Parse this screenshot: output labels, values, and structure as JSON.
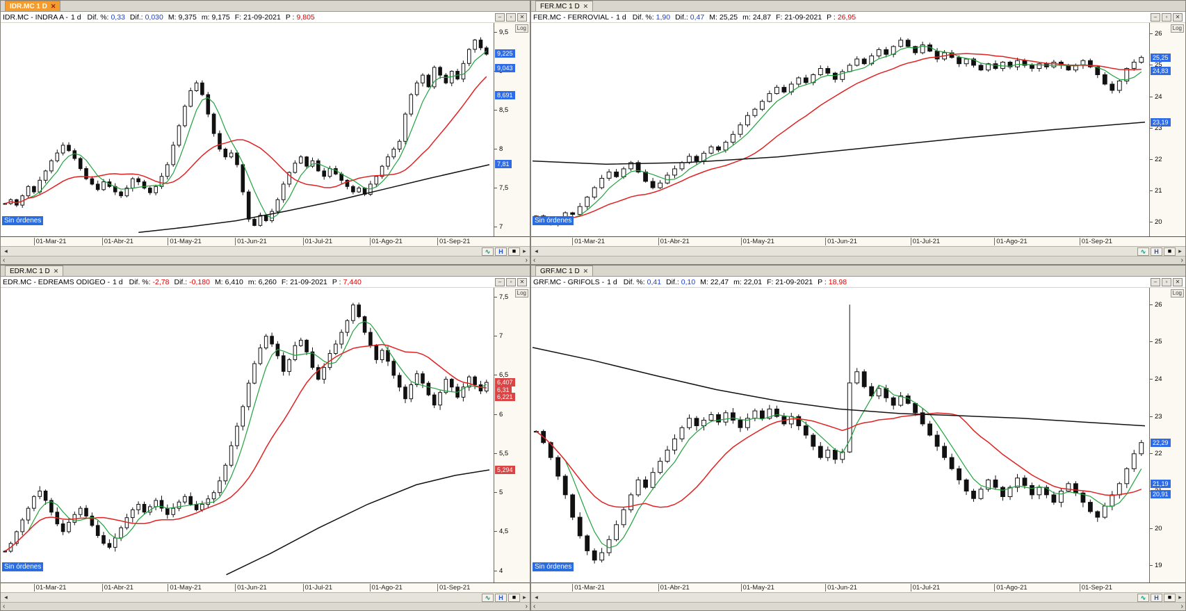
{
  "icons": {
    "tab_close": "✕",
    "minimize": "–",
    "maximize": "▫",
    "close": "✕",
    "log": "Log",
    "left_arrow": "◂",
    "right_arrow": "▸",
    "wave": "∿",
    "disk_h": "H",
    "square": "■",
    "prev": "‹",
    "next": "›"
  },
  "colors": {
    "badge_blue": "#2e6be6",
    "badge_red": "#d94444",
    "ma_green": "#1fa33c",
    "ma_red": "#e02222",
    "ma_black": "#111111",
    "value_blue": "#1a3fd1",
    "value_red": "#e00000"
  },
  "panes": [
    {
      "id": "IDR.MC",
      "tab": {
        "label": "IDR.MC 1 D",
        "active": true
      },
      "header": {
        "title": "IDR.MC - INDRA A -",
        "timeframe": "1 d",
        "fields": [
          {
            "k": "Dif. %:",
            "v": "0,33",
            "c": "#1a3fd1"
          },
          {
            "k": "Dif.:",
            "v": "0,030",
            "c": "#1a3fd1"
          },
          {
            "k": "M:",
            "v": "9,375",
            "c": "#000000"
          },
          {
            "k": "m:",
            "v": "9,175",
            "c": "#000000"
          },
          {
            "k": "F:",
            "v": "21-09-2021",
            "c": "#000000"
          },
          {
            "k": "P :",
            "v": "9,805",
            "c": "#e00000"
          }
        ]
      },
      "no_orders_label": "Sin órdenes",
      "axis": {
        "range": [
          6.88,
          9.62
        ],
        "ticks": [
          {
            "v": 9.5,
            "label": "9,5"
          },
          {
            "v": 9,
            "label": "9"
          },
          {
            "v": 8.5,
            "label": "8,5"
          },
          {
            "v": 8,
            "label": "8"
          },
          {
            "v": 7.5,
            "label": "7,5"
          },
          {
            "v": 7,
            "label": "7"
          }
        ],
        "badges": [
          {
            "price": 9.225,
            "label": "9,225",
            "color": "#2e6be6"
          },
          {
            "price": 9.043,
            "label": "9,043",
            "color": "#2e6be6"
          },
          {
            "price": 8.691,
            "label": "8,691",
            "color": "#2e6be6"
          },
          {
            "price": 7.81,
            "label": "7,81",
            "color": "#2e6be6"
          }
        ]
      },
      "x_labels": [
        {
          "f": 0.065,
          "label": "01-Mar-21"
        },
        {
          "f": 0.205,
          "label": "01-Abr-21"
        },
        {
          "f": 0.34,
          "label": "01-May-21"
        },
        {
          "f": 0.478,
          "label": "01-Jun-21"
        },
        {
          "f": 0.617,
          "label": "01-Jul-21"
        },
        {
          "f": 0.754,
          "label": "01-Ago-21"
        },
        {
          "f": 0.893,
          "label": "01-Sep-21"
        }
      ],
      "chart_data": {
        "type": "candlestick",
        "symbol": "IDR.MC",
        "period": "1d",
        "closes": [
          7.3,
          7.35,
          7.28,
          7.4,
          7.52,
          7.45,
          7.6,
          7.72,
          7.85,
          7.95,
          8.05,
          7.98,
          7.88,
          7.75,
          7.62,
          7.55,
          7.48,
          7.58,
          7.52,
          7.45,
          7.4,
          7.5,
          7.62,
          7.58,
          7.5,
          7.44,
          7.52,
          7.65,
          7.8,
          8.05,
          8.3,
          8.55,
          8.75,
          8.85,
          8.7,
          8.45,
          8.2,
          8.0,
          7.9,
          7.95,
          7.8,
          7.45,
          7.1,
          7.02,
          7.15,
          7.08,
          7.2,
          7.35,
          7.55,
          7.7,
          7.82,
          7.9,
          7.78,
          7.85,
          7.72,
          7.65,
          7.75,
          7.68,
          7.6,
          7.52,
          7.45,
          7.5,
          7.42,
          7.55,
          7.65,
          7.78,
          7.9,
          8.0,
          8.1,
          8.45,
          8.7,
          8.85,
          8.95,
          8.8,
          9.05,
          8.95,
          8.85,
          9.0,
          8.9,
          9.1,
          9.28,
          9.4,
          9.3,
          9.22
        ],
        "ma_black": [
          [
            0.28,
            6.93
          ],
          [
            0.38,
            7.0
          ],
          [
            0.48,
            7.08
          ],
          [
            0.58,
            7.2
          ],
          [
            0.68,
            7.33
          ],
          [
            0.78,
            7.48
          ],
          [
            0.88,
            7.63
          ],
          [
            1,
            7.8
          ]
        ],
        "ma_windows": {
          "green": 5,
          "red": 16
        },
        "spikes": []
      }
    },
    {
      "id": "FER.MC",
      "tab": {
        "label": "FER.MC 1 D",
        "active": false
      },
      "header": {
        "title": "FER.MC - FERROVIAL -",
        "timeframe": "1 d",
        "fields": [
          {
            "k": "Dif. %:",
            "v": "1,90",
            "c": "#1a3fd1"
          },
          {
            "k": "Dif.:",
            "v": "0,47",
            "c": "#1a3fd1"
          },
          {
            "k": "M:",
            "v": "25,25",
            "c": "#000000"
          },
          {
            "k": "m:",
            "v": "24,87",
            "c": "#000000"
          },
          {
            "k": "F:",
            "v": "21-09-2021",
            "c": "#000000"
          },
          {
            "k": "P :",
            "v": "26,95",
            "c": "#e00000"
          }
        ]
      },
      "no_orders_label": "Sin órdenes",
      "axis": {
        "range": [
          19.55,
          26.35
        ],
        "ticks": [
          {
            "v": 26,
            "label": "26"
          },
          {
            "v": 25,
            "label": "25"
          },
          {
            "v": 24,
            "label": "24"
          },
          {
            "v": 23,
            "label": "23"
          },
          {
            "v": 22,
            "label": "22"
          },
          {
            "v": 21,
            "label": "21"
          },
          {
            "v": 20,
            "label": "20"
          }
        ],
        "badges": [
          {
            "price": 25.25,
            "label": "25,25",
            "color": "#2e6be6"
          },
          {
            "price": 24.83,
            "label": "24,83",
            "color": "#2e6be6"
          },
          {
            "price": 23.19,
            "label": "23,19",
            "color": "#2e6be6"
          }
        ]
      },
      "x_labels": [
        {
          "f": 0.065,
          "label": "01-Mar-21"
        },
        {
          "f": 0.205,
          "label": "01-Abr-21"
        },
        {
          "f": 0.34,
          "label": "01-May-21"
        },
        {
          "f": 0.478,
          "label": "01-Jun-21"
        },
        {
          "f": 0.617,
          "label": "01-Jul-21"
        },
        {
          "f": 0.754,
          "label": "01-Ago-21"
        },
        {
          "f": 0.893,
          "label": "01-Sep-21"
        }
      ],
      "chart_data": {
        "type": "candlestick",
        "symbol": "FER.MC",
        "period": "1d",
        "closes": [
          20.2,
          20.05,
          19.95,
          20.1,
          20.3,
          20.25,
          20.5,
          20.8,
          21.1,
          21.4,
          21.6,
          21.45,
          21.7,
          21.9,
          21.6,
          21.3,
          21.1,
          21.25,
          21.5,
          21.7,
          21.9,
          22.1,
          21.95,
          22.2,
          22.4,
          22.3,
          22.55,
          22.8,
          23.1,
          23.4,
          23.6,
          23.85,
          24.1,
          24.3,
          24.15,
          24.4,
          24.6,
          24.45,
          24.7,
          24.9,
          24.75,
          24.55,
          24.8,
          25.0,
          25.2,
          25.05,
          25.3,
          25.5,
          25.35,
          25.6,
          25.8,
          25.6,
          25.4,
          25.65,
          25.45,
          25.2,
          25.4,
          25.25,
          25.05,
          25.2,
          25.0,
          24.85,
          25.05,
          24.9,
          25.1,
          24.95,
          25.15,
          25.0,
          24.9,
          25.05,
          24.95,
          25.1,
          25.0,
          24.85,
          25.0,
          25.15,
          24.95,
          24.7,
          24.4,
          24.2,
          24.5,
          24.9,
          25.1,
          25.25
        ],
        "ma_black": [
          [
            0,
            21.95
          ],
          [
            0.12,
            21.85
          ],
          [
            0.25,
            21.9
          ],
          [
            0.4,
            22.08
          ],
          [
            0.55,
            22.38
          ],
          [
            0.7,
            22.68
          ],
          [
            0.85,
            22.95
          ],
          [
            1,
            23.19
          ]
        ],
        "ma_windows": {
          "green": 5,
          "red": 16
        },
        "spikes": []
      }
    },
    {
      "id": "EDR.MC",
      "tab": {
        "label": "EDR.MC 1 D",
        "active": false
      },
      "header": {
        "title": "EDR.MC - EDREAMS ODIGEO -",
        "timeframe": "1 d",
        "fields": [
          {
            "k": "Dif. %:",
            "v": "-2,78",
            "c": "#e00000"
          },
          {
            "k": "Dif.:",
            "v": "-0,180",
            "c": "#e00000"
          },
          {
            "k": "M:",
            "v": "6,410",
            "c": "#000000"
          },
          {
            "k": "m:",
            "v": "6,260",
            "c": "#000000"
          },
          {
            "k": "F:",
            "v": "21-09-2021",
            "c": "#000000"
          },
          {
            "k": "P :",
            "v": "7,440",
            "c": "#e00000"
          }
        ]
      },
      "no_orders_label": "Sin órdenes",
      "axis": {
        "range": [
          3.85,
          7.62
        ],
        "ticks": [
          {
            "v": 7.5,
            "label": "7,5"
          },
          {
            "v": 7,
            "label": "7"
          },
          {
            "v": 6.5,
            "label": "6,5"
          },
          {
            "v": 6,
            "label": "6"
          },
          {
            "v": 5.5,
            "label": "5,5"
          },
          {
            "v": 5,
            "label": "5"
          },
          {
            "v": 4.5,
            "label": "4,5"
          },
          {
            "v": 4,
            "label": "4"
          }
        ],
        "badges": [
          {
            "price": 6.407,
            "label": "6,407",
            "color": "#d94444"
          },
          {
            "price": 6.31,
            "label": "6,31",
            "color": "#d94444"
          },
          {
            "price": 6.221,
            "label": "6,221",
            "color": "#d94444"
          },
          {
            "price": 5.294,
            "label": "5,294",
            "color": "#d94444"
          }
        ]
      },
      "x_labels": [
        {
          "f": 0.065,
          "label": "01-Mar-21"
        },
        {
          "f": 0.205,
          "label": "01-Abr-21"
        },
        {
          "f": 0.34,
          "label": "01-May-21"
        },
        {
          "f": 0.478,
          "label": "01-Jun-21"
        },
        {
          "f": 0.617,
          "label": "01-Jul-21"
        },
        {
          "f": 0.754,
          "label": "01-Ago-21"
        },
        {
          "f": 0.893,
          "label": "01-Sep-21"
        }
      ],
      "chart_data": {
        "type": "candlestick",
        "symbol": "EDR.MC",
        "period": "1d",
        "closes": [
          4.25,
          4.35,
          4.5,
          4.65,
          4.8,
          4.95,
          5.02,
          4.9,
          4.75,
          4.6,
          4.5,
          4.62,
          4.72,
          4.8,
          4.7,
          4.58,
          4.45,
          4.35,
          4.3,
          4.42,
          4.55,
          4.68,
          4.78,
          4.85,
          4.75,
          4.82,
          4.9,
          4.8,
          4.72,
          4.8,
          4.88,
          4.95,
          4.85,
          4.78,
          4.85,
          4.92,
          5.0,
          5.15,
          5.35,
          5.6,
          5.85,
          6.1,
          6.4,
          6.65,
          6.85,
          7.0,
          6.9,
          6.75,
          6.55,
          6.7,
          6.88,
          6.95,
          6.8,
          6.6,
          6.45,
          6.6,
          6.78,
          6.9,
          7.05,
          7.2,
          7.4,
          7.25,
          7.05,
          6.88,
          6.7,
          6.82,
          6.68,
          6.5,
          6.35,
          6.2,
          6.38,
          6.52,
          6.4,
          6.25,
          6.12,
          6.28,
          6.45,
          6.35,
          6.22,
          6.35,
          6.48,
          6.38,
          6.3,
          6.41
        ],
        "ma_black": [
          [
            0.46,
            3.95
          ],
          [
            0.55,
            4.22
          ],
          [
            0.65,
            4.55
          ],
          [
            0.75,
            4.85
          ],
          [
            0.85,
            5.1
          ],
          [
            0.93,
            5.22
          ],
          [
            1,
            5.29
          ]
        ],
        "ma_windows": {
          "green": 5,
          "red": 16
        },
        "spikes": []
      }
    },
    {
      "id": "GRF.MC",
      "tab": {
        "label": "GRF.MC 1 D",
        "active": false
      },
      "header": {
        "title": "GRF.MC - GRIFOLS -",
        "timeframe": "1 d",
        "fields": [
          {
            "k": "Dif. %:",
            "v": "0,41",
            "c": "#1a3fd1"
          },
          {
            "k": "Dif.:",
            "v": "0,10",
            "c": "#1a3fd1"
          },
          {
            "k": "M:",
            "v": "22,47",
            "c": "#000000"
          },
          {
            "k": "m:",
            "v": "22,01",
            "c": "#000000"
          },
          {
            "k": "F:",
            "v": "21-09-2021",
            "c": "#000000"
          },
          {
            "k": "P :",
            "v": "18,98",
            "c": "#e00000"
          }
        ]
      },
      "no_orders_label": "Sin órdenes",
      "axis": {
        "range": [
          18.55,
          26.45
        ],
        "ticks": [
          {
            "v": 26,
            "label": "26"
          },
          {
            "v": 25,
            "label": "25"
          },
          {
            "v": 24,
            "label": "24"
          },
          {
            "v": 23,
            "label": "23"
          },
          {
            "v": 22,
            "label": "22"
          },
          {
            "v": 21,
            "label": "21"
          },
          {
            "v": 20,
            "label": "20"
          },
          {
            "v": 19,
            "label": "19"
          }
        ],
        "badges": [
          {
            "price": 22.29,
            "label": "22,29",
            "color": "#2e6be6"
          },
          {
            "price": 21.19,
            "label": "21,19",
            "color": "#2e6be6"
          },
          {
            "price": 20.91,
            "label": "20,91",
            "color": "#2e6be6"
          }
        ]
      },
      "x_labels": [
        {
          "f": 0.065,
          "label": "01-Mar-21"
        },
        {
          "f": 0.205,
          "label": "01-Abr-21"
        },
        {
          "f": 0.34,
          "label": "01-May-21"
        },
        {
          "f": 0.478,
          "label": "01-Jun-21"
        },
        {
          "f": 0.617,
          "label": "01-Jul-21"
        },
        {
          "f": 0.754,
          "label": "01-Ago-21"
        },
        {
          "f": 0.893,
          "label": "01-Sep-21"
        }
      ],
      "chart_data": {
        "type": "candlestick",
        "symbol": "GRF.MC",
        "period": "1d",
        "closes": [
          22.6,
          22.3,
          21.9,
          21.4,
          20.9,
          20.3,
          19.8,
          19.4,
          19.15,
          19.35,
          19.7,
          20.1,
          20.5,
          20.9,
          21.3,
          21.1,
          21.5,
          21.8,
          22.1,
          22.4,
          22.7,
          22.95,
          22.75,
          22.9,
          23.05,
          22.85,
          23.1,
          22.9,
          22.7,
          22.95,
          23.15,
          22.95,
          23.2,
          23.0,
          22.8,
          23.0,
          22.75,
          22.5,
          22.2,
          21.9,
          22.1,
          21.85,
          22.05,
          23.9,
          24.2,
          23.8,
          23.55,
          23.75,
          23.5,
          23.3,
          23.55,
          23.35,
          23.1,
          22.8,
          22.5,
          22.2,
          21.9,
          21.6,
          21.3,
          21.0,
          20.8,
          21.05,
          21.3,
          21.1,
          20.85,
          21.1,
          21.35,
          21.15,
          20.9,
          21.1,
          20.9,
          20.7,
          21.0,
          21.2,
          20.95,
          20.7,
          20.45,
          20.3,
          20.6,
          20.9,
          21.2,
          21.6,
          22.0,
          22.3
        ],
        "ma_black": [
          [
            0,
            24.85
          ],
          [
            0.1,
            24.5
          ],
          [
            0.2,
            24.1
          ],
          [
            0.3,
            23.72
          ],
          [
            0.4,
            23.42
          ],
          [
            0.5,
            23.2
          ],
          [
            0.6,
            23.08
          ],
          [
            0.7,
            23.02
          ],
          [
            0.8,
            22.95
          ],
          [
            0.9,
            22.85
          ],
          [
            1,
            22.75
          ]
        ],
        "ma_windows": {
          "green": 5,
          "red": 16
        },
        "spikes": [
          {
            "i": 43,
            "high": 26.0
          }
        ]
      }
    }
  ]
}
